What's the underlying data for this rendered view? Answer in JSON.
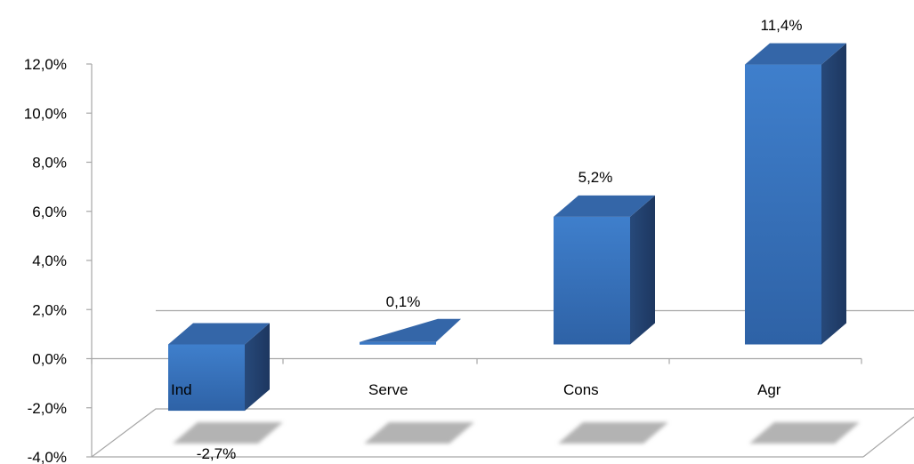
{
  "chart_data": {
    "type": "bar",
    "categories": [
      "Ind",
      "Serve",
      "Cons",
      "Agr"
    ],
    "values": [
      -2.7,
      0.1,
      5.2,
      11.4
    ],
    "data_labels": [
      "-2,7%",
      "0,1%",
      "5,2%",
      "11,4%"
    ],
    "y_ticks": [
      -4,
      -2,
      0,
      2,
      4,
      6,
      8,
      10,
      12
    ],
    "y_tick_labels": [
      "-4,0%",
      "-2,0%",
      "0,0%",
      "2,0%",
      "4,0%",
      "6,0%",
      "8,0%",
      "10,0%",
      "12,0%"
    ],
    "ylim": [
      -4,
      12
    ],
    "grid": false,
    "legend": "none",
    "style": "3d",
    "colors": {
      "bar_front": "#3a78c4",
      "bar_side": "#223f6b",
      "bar_top": "#3466a8",
      "shadow": "#b3b3b3",
      "axis": "#a6a6a6"
    }
  }
}
